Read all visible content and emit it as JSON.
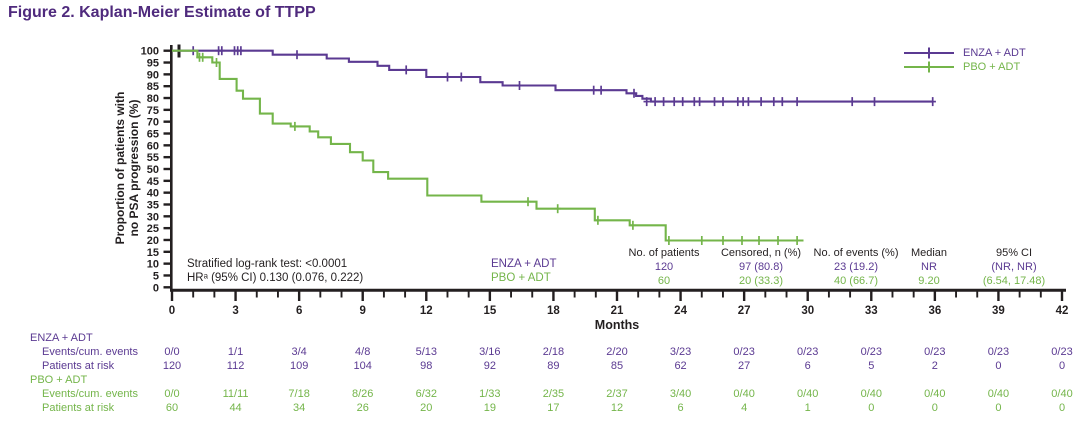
{
  "figure_title": "Figure 2. Kaplan-Meier Estimate of TTPP",
  "colors": {
    "title_purple": "#4f2a7d",
    "purple": "#5b3a92",
    "green": "#74b54a",
    "axis_black": "#231f20"
  },
  "axis": {
    "x_label": "Months",
    "y_label_lines": [
      "Proportion of patients with",
      "no PSA progression (%)"
    ]
  },
  "annotations": {
    "logrank": "Stratified log-rank test: <0.0001",
    "hr": "HRᵃ (95% CI) 0.130 (0.076, 0.222)"
  },
  "group_labels": [
    {
      "label": "ENZA + ADT",
      "color_key": "purple"
    },
    {
      "label": "PBO + ADT",
      "color_key": "green"
    }
  ],
  "stats_table": {
    "headers": [
      "No. of patients",
      "Censored, n (%)",
      "No. of events (%)",
      "Median",
      "95% CI"
    ],
    "rows": [
      {
        "group": "ENZA + ADT",
        "color_key": "purple",
        "values": [
          "120",
          "97 (80.8)",
          "23 (19.2)",
          "NR",
          "(NR, NR)"
        ]
      },
      {
        "group": "PBO + ADT",
        "color_key": "green",
        "values": [
          "60",
          "20 (33.3)",
          "40 (66.7)",
          "9.20",
          "(6.54, 17.48)"
        ]
      }
    ]
  },
  "chart_data": {
    "type": "line",
    "subtype": "kaplan-meier-step",
    "title": "Figure 2. Kaplan-Meier Estimate of TTPP",
    "xlabel": "Months",
    "ylabel": "Proportion of patients with no PSA progression (%)",
    "xlim": [
      0,
      42
    ],
    "x_major_tick": 3,
    "x_minor_tick": 1,
    "ylim": [
      0,
      100
    ],
    "y_tick": 5,
    "grid": false,
    "legend_position": "top-right",
    "series": [
      {
        "name": "ENZA + ADT",
        "color": "#5b3a92",
        "steps": [
          [
            0,
            100
          ],
          [
            4.75,
            98.3
          ],
          [
            7.3,
            96.7
          ],
          [
            8.35,
            95.3
          ],
          [
            9.7,
            93.6
          ],
          [
            10.25,
            91.9
          ],
          [
            12.0,
            88.9
          ],
          [
            14.55,
            86.7
          ],
          [
            15.6,
            85.3
          ],
          [
            18.1,
            83.3
          ],
          [
            21.45,
            82.0
          ],
          [
            21.9,
            80.9
          ],
          [
            22.2,
            79.7
          ],
          [
            22.6,
            78.5
          ]
        ],
        "end_month": 35.9,
        "censors": [
          [
            1.0,
            100
          ],
          [
            2.2,
            100
          ],
          [
            2.35,
            100
          ],
          [
            2.95,
            100
          ],
          [
            3.1,
            100
          ],
          [
            3.25,
            100
          ],
          [
            5.9,
            98.3
          ],
          [
            11.05,
            91.9
          ],
          [
            13.0,
            88.9
          ],
          [
            13.65,
            88.9
          ],
          [
            16.4,
            85.3
          ],
          [
            19.9,
            83.3
          ],
          [
            20.25,
            83.3
          ],
          [
            21.8,
            82.0
          ],
          [
            22.4,
            78.5
          ],
          [
            22.8,
            78.5
          ],
          [
            23.2,
            78.5
          ],
          [
            23.7,
            78.5
          ],
          [
            24.1,
            78.5
          ],
          [
            24.65,
            78.5
          ],
          [
            24.9,
            78.5
          ],
          [
            25.6,
            78.5
          ],
          [
            26.0,
            78.5
          ],
          [
            26.7,
            78.5
          ],
          [
            26.95,
            78.5
          ],
          [
            27.2,
            78.5
          ],
          [
            27.8,
            78.5
          ],
          [
            28.4,
            78.5
          ],
          [
            28.8,
            78.5
          ],
          [
            29.5,
            78.5
          ],
          [
            32.1,
            78.5
          ],
          [
            33.15,
            78.5
          ],
          [
            35.9,
            78.5
          ]
        ]
      },
      {
        "name": "PBO + ADT",
        "color": "#74b54a",
        "steps": [
          [
            0,
            100
          ],
          [
            1.2,
            97.2
          ],
          [
            1.9,
            95.0
          ],
          [
            2.25,
            88.1
          ],
          [
            3.05,
            83.1
          ],
          [
            3.35,
            79.7
          ],
          [
            4.15,
            73.4
          ],
          [
            4.75,
            69.2
          ],
          [
            5.6,
            68.0
          ],
          [
            6.5,
            65.9
          ],
          [
            6.9,
            63.4
          ],
          [
            7.5,
            60.6
          ],
          [
            8.4,
            57.1
          ],
          [
            9.0,
            53.6
          ],
          [
            9.5,
            48.7
          ],
          [
            10.2,
            45.9
          ],
          [
            12.05,
            38.8
          ],
          [
            14.6,
            36.2
          ],
          [
            17.2,
            33.2
          ],
          [
            19.95,
            28.3
          ],
          [
            21.6,
            26.2
          ],
          [
            23.3,
            19.8
          ]
        ],
        "end_month": 29.8,
        "censors": [
          [
            1.3,
            97.2
          ],
          [
            1.45,
            97.2
          ],
          [
            2.1,
            95.0
          ],
          [
            5.8,
            68.0
          ],
          [
            16.8,
            36.2
          ],
          [
            18.2,
            33.2
          ],
          [
            20.1,
            28.3
          ],
          [
            21.75,
            26.2
          ],
          [
            23.45,
            19.8
          ],
          [
            25.0,
            19.8
          ],
          [
            26.0,
            19.8
          ],
          [
            26.9,
            19.8
          ],
          [
            27.7,
            19.8
          ],
          [
            28.6,
            19.8
          ],
          [
            29.5,
            19.8
          ]
        ]
      }
    ]
  },
  "risk_table": {
    "months": [
      0,
      3,
      6,
      9,
      12,
      15,
      18,
      21,
      24,
      27,
      30,
      33,
      36,
      39,
      42
    ],
    "groups": [
      {
        "name": "ENZA + ADT",
        "color_key": "purple",
        "rows": [
          {
            "label": "Events/cum. events",
            "values": [
              "0/0",
              "1/1",
              "3/4",
              "4/8",
              "5/13",
              "3/16",
              "2/18",
              "2/20",
              "3/23",
              "0/23",
              "0/23",
              "0/23",
              "0/23",
              "0/23",
              "0/23"
            ]
          },
          {
            "label": "Patients at risk",
            "values": [
              "120",
              "112",
              "109",
              "104",
              "98",
              "92",
              "89",
              "85",
              "62",
              "27",
              "6",
              "5",
              "2",
              "0",
              "0"
            ]
          }
        ]
      },
      {
        "name": "PBO + ADT",
        "color_key": "green",
        "rows": [
          {
            "label": "Events/cum. events",
            "values": [
              "0/0",
              "11/11",
              "7/18",
              "8/26",
              "6/32",
              "1/33",
              "2/35",
              "2/37",
              "3/40",
              "0/40",
              "0/40",
              "0/40",
              "0/40",
              "0/40",
              "0/40"
            ]
          },
          {
            "label": "Patients at risk",
            "values": [
              "60",
              "44",
              "34",
              "26",
              "20",
              "19",
              "17",
              "12",
              "6",
              "4",
              "1",
              "0",
              "0",
              "0",
              "0"
            ]
          }
        ]
      }
    ]
  }
}
